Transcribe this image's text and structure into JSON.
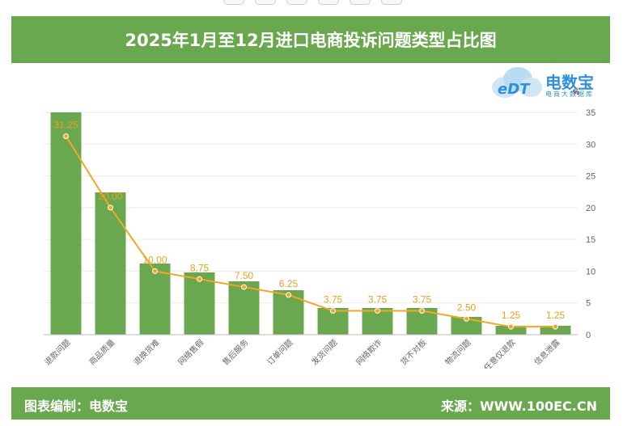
{
  "header": {
    "title": "2025年1月至12月进口电商投诉问题类型占比图"
  },
  "logo": {
    "name": "电数宝",
    "sub": "电商大数据库",
    "icon_text": "eDT",
    "unit": "%"
  },
  "footer": {
    "left": "图表编制：电数宝",
    "right": "来源：WWW.100EC.CN"
  },
  "colors": {
    "bar": "#6aa84f",
    "line": "#f5a623",
    "label": "#e8a020",
    "header_bg": "#6aa84f"
  },
  "chart_data": {
    "type": "bar",
    "categories": [
      "退款问题",
      "商品质量",
      "退换货难",
      "网络售假",
      "售后服务",
      "订单问题",
      "发货问题",
      "网络欺诈",
      "货不对板",
      "物流问题",
      "任意仅退款",
      "信息泄露"
    ],
    "series": [
      {
        "type": "bar",
        "values": [
          35,
          22.4,
          11.2,
          9.8,
          8.4,
          7.0,
          4.2,
          4.2,
          4.2,
          2.8,
          1.4,
          1.4
        ]
      },
      {
        "type": "line",
        "values": [
          31.25,
          20.0,
          10.0,
          8.75,
          7.5,
          6.25,
          3.75,
          3.75,
          3.75,
          2.5,
          1.25,
          1.25
        ]
      }
    ],
    "data_labels": [
      "31.25",
      "20.00",
      "10.00",
      "8.75",
      "7.50",
      "6.25",
      "3.75",
      "3.75",
      "3.75",
      "2.50",
      "1.25",
      "1.25"
    ],
    "y_ticks": [
      "0",
      "5",
      "10",
      "15",
      "20",
      "25",
      "30",
      "35"
    ],
    "ylim": [
      0,
      35
    ],
    "y_axis_position": "right",
    "grid": true,
    "legend": false
  }
}
